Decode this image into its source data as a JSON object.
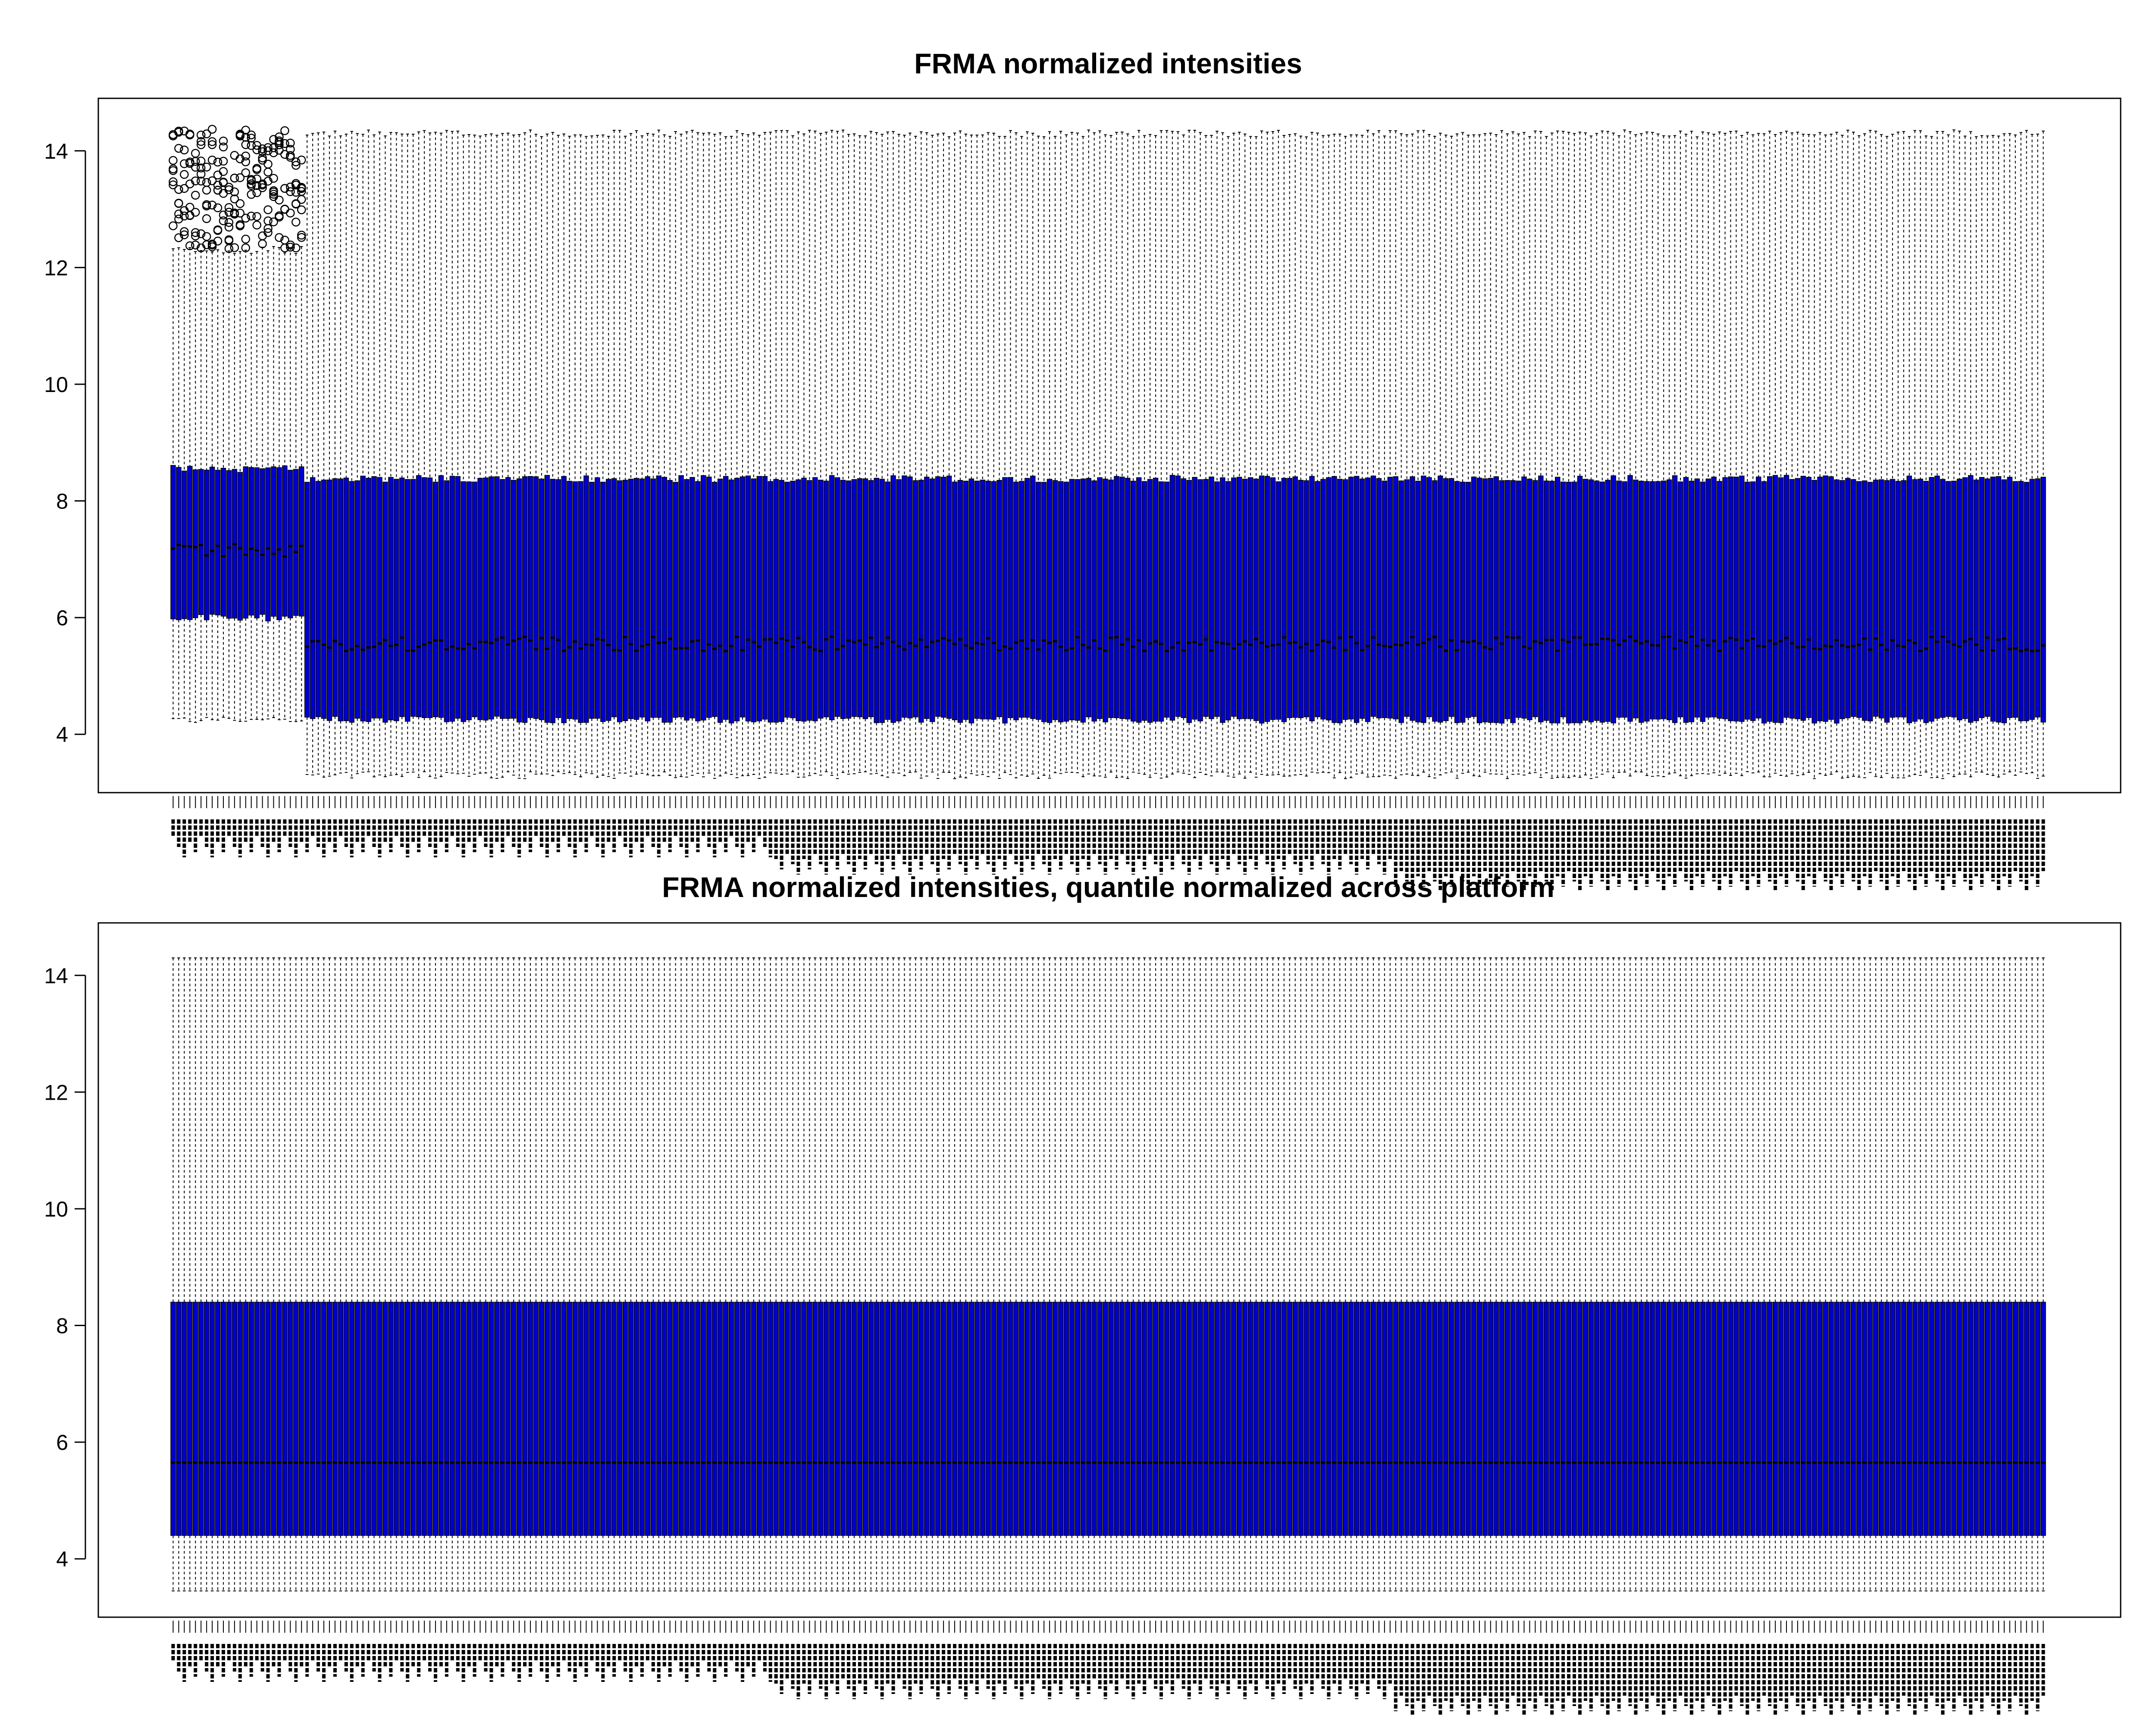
{
  "colors": {
    "box_fill": "#0000CD",
    "box_border": "#000000",
    "whisker": "#000000",
    "background": "#FFFFFF"
  },
  "chart_data": [
    {
      "type": "boxplot",
      "title": "FRMA normalized intensities",
      "xlabel": "",
      "ylabel": "",
      "ylim": [
        3.0,
        14.9
      ],
      "yticks": [
        "4",
        "6",
        "8",
        "10",
        "12",
        "14"
      ],
      "n_samples": 336,
      "grid": false,
      "groups": [
        {
          "samples": 24,
          "lower_whisker": 4.25,
          "q1": 6.0,
          "median": 7.15,
          "q3": 8.55,
          "upper_whisker": 12.3,
          "outliers_range": [
            12.3,
            14.4
          ]
        },
        {
          "samples": 312,
          "lower_whisker": 3.3,
          "q1": 4.25,
          "median": 5.55,
          "q3": 8.38,
          "upper_whisker": 14.3
        }
      ]
    },
    {
      "type": "boxplot",
      "title": "FRMA normalized intensities, quantile normalized across platform",
      "xlabel": "",
      "ylabel": "",
      "ylim": [
        3.0,
        14.9
      ],
      "yticks": [
        "4",
        "6",
        "8",
        "10",
        "12",
        "14"
      ],
      "n_samples": 336,
      "grid": false,
      "groups": [
        {
          "samples": 336,
          "lower_whisker": 3.45,
          "q1": 4.4,
          "median": 5.65,
          "q3": 8.4,
          "upper_whisker": 14.3
        }
      ]
    }
  ]
}
